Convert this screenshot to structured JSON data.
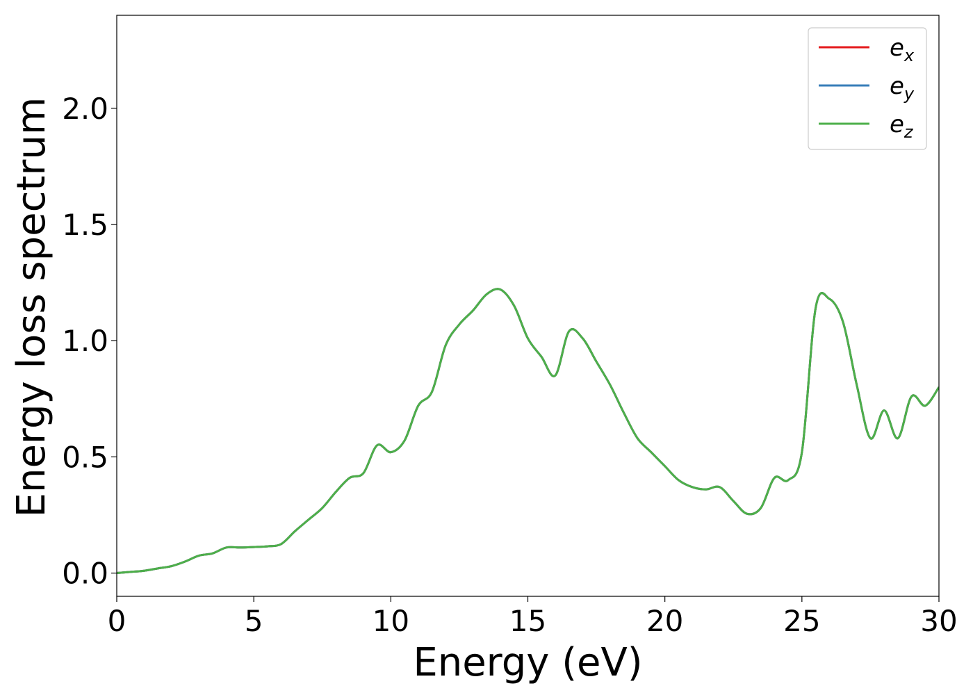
{
  "chart_data": {
    "type": "line",
    "xlabel": "Energy (eV)",
    "ylabel": "Energy loss spectrum",
    "xlim": [
      0,
      30
    ],
    "ylim": [
      -0.1,
      2.4
    ],
    "x_ticks": [
      0,
      5,
      10,
      15,
      20,
      25,
      30
    ],
    "x_tick_labels": [
      "0",
      "5",
      "10",
      "15",
      "20",
      "25",
      "30"
    ],
    "y_ticks": [
      0.0,
      0.5,
      1.0,
      1.5,
      2.0
    ],
    "y_tick_labels": [
      "0.0",
      "0.5",
      "1.0",
      "1.5",
      "2.0"
    ],
    "grid": false,
    "legend_position": "top-right",
    "series": [
      {
        "name": "e_x",
        "legend_base": "e",
        "legend_sub": "x",
        "color": "#e41a1c",
        "x": [
          0,
          0.5,
          1,
          1.5,
          2,
          2.5,
          3,
          3.5,
          4,
          4.5,
          5,
          5.5,
          6,
          6.5,
          7,
          7.5,
          8,
          8.5,
          9,
          9.5,
          10,
          10.5,
          11,
          11.5,
          12,
          12.5,
          13,
          13.5,
          14,
          14.5,
          15,
          15.5,
          16,
          16.5,
          17,
          17.5,
          18,
          18.5,
          19,
          19.5,
          20,
          20.5,
          21,
          21.5,
          22,
          22.5,
          23,
          23.5,
          24,
          24.5,
          25,
          25.5,
          26,
          26.5,
          27,
          27.5,
          28,
          28.5,
          29,
          29.5,
          30
        ],
        "y": [
          0.0,
          0.005,
          0.01,
          0.02,
          0.03,
          0.05,
          0.075,
          0.085,
          0.11,
          0.11,
          0.112,
          0.115,
          0.125,
          0.18,
          0.23,
          0.28,
          0.35,
          0.41,
          0.43,
          0.55,
          0.52,
          0.57,
          0.72,
          0.78,
          0.98,
          1.07,
          1.13,
          1.2,
          1.22,
          1.15,
          1.01,
          0.93,
          0.85,
          1.04,
          1.01,
          0.91,
          0.81,
          0.69,
          0.58,
          0.52,
          0.46,
          0.4,
          0.37,
          0.36,
          0.37,
          0.31,
          0.255,
          0.28,
          0.41,
          0.4,
          0.52,
          1.14,
          1.18,
          1.08,
          0.81,
          0.58,
          0.7,
          0.58,
          0.76,
          0.72,
          0.8
        ]
      },
      {
        "name": "e_y",
        "legend_base": "e",
        "legend_sub": "y",
        "color": "#377eb8",
        "x": [
          0,
          0.5,
          1,
          1.5,
          2,
          2.5,
          3,
          3.5,
          4,
          4.5,
          5,
          5.5,
          6,
          6.5,
          7,
          7.5,
          8,
          8.5,
          9,
          9.5,
          10,
          10.5,
          11,
          11.5,
          12,
          12.5,
          13,
          13.5,
          14,
          14.5,
          15,
          15.5,
          16,
          16.5,
          17,
          17.5,
          18,
          18.5,
          19,
          19.5,
          20,
          20.5,
          21,
          21.5,
          22,
          22.5,
          23,
          23.5,
          24,
          24.5,
          25,
          25.5,
          26,
          26.5,
          27,
          27.5,
          28,
          28.5,
          29,
          29.5,
          30
        ],
        "y": [
          0.0,
          0.005,
          0.01,
          0.02,
          0.03,
          0.05,
          0.075,
          0.085,
          0.11,
          0.11,
          0.112,
          0.115,
          0.125,
          0.18,
          0.23,
          0.28,
          0.35,
          0.41,
          0.43,
          0.55,
          0.52,
          0.57,
          0.72,
          0.78,
          0.98,
          1.07,
          1.13,
          1.2,
          1.22,
          1.15,
          1.01,
          0.93,
          0.85,
          1.04,
          1.01,
          0.91,
          0.81,
          0.69,
          0.58,
          0.52,
          0.46,
          0.4,
          0.37,
          0.36,
          0.37,
          0.31,
          0.255,
          0.28,
          0.41,
          0.4,
          0.52,
          1.14,
          1.18,
          1.08,
          0.81,
          0.58,
          0.7,
          0.58,
          0.76,
          0.72,
          0.8
        ]
      },
      {
        "name": "e_z",
        "legend_base": "e",
        "legend_sub": "z",
        "color": "#4daf4a",
        "x": [
          0,
          0.5,
          1,
          1.5,
          2,
          2.5,
          3,
          3.5,
          4,
          4.5,
          5,
          5.5,
          6,
          6.5,
          7,
          7.5,
          8,
          8.5,
          9,
          9.5,
          10,
          10.5,
          11,
          11.5,
          12,
          12.5,
          13,
          13.5,
          14,
          14.5,
          15,
          15.5,
          16,
          16.5,
          17,
          17.5,
          18,
          18.5,
          19,
          19.5,
          20,
          20.5,
          21,
          21.5,
          22,
          22.5,
          23,
          23.5,
          24,
          24.5,
          25,
          25.5,
          26,
          26.5,
          27,
          27.5,
          28,
          28.5,
          29,
          29.5,
          30
        ],
        "y": [
          0.0,
          0.005,
          0.01,
          0.02,
          0.03,
          0.05,
          0.075,
          0.085,
          0.11,
          0.11,
          0.112,
          0.115,
          0.125,
          0.18,
          0.23,
          0.28,
          0.35,
          0.41,
          0.43,
          0.55,
          0.52,
          0.57,
          0.72,
          0.78,
          0.98,
          1.07,
          1.13,
          1.2,
          1.22,
          1.15,
          1.01,
          0.93,
          0.85,
          1.04,
          1.01,
          0.91,
          0.81,
          0.69,
          0.58,
          0.52,
          0.46,
          0.4,
          0.37,
          0.36,
          0.37,
          0.31,
          0.255,
          0.28,
          0.41,
          0.4,
          0.52,
          1.14,
          1.18,
          1.08,
          0.81,
          0.58,
          0.7,
          0.58,
          0.76,
          0.72,
          0.8
        ]
      }
    ]
  }
}
